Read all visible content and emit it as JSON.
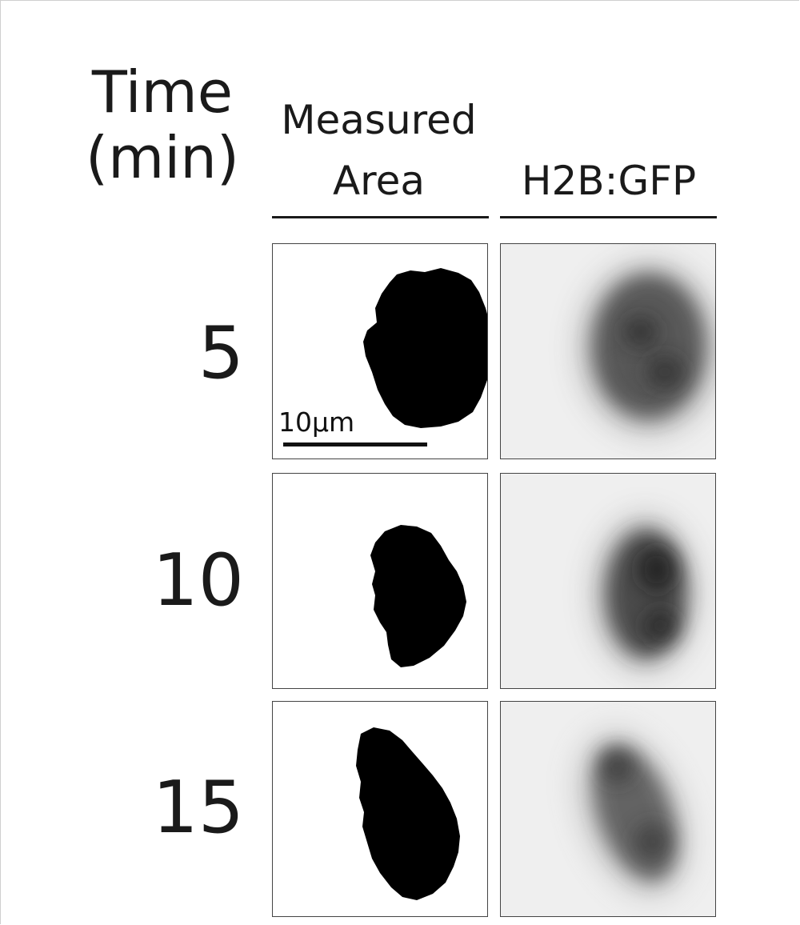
{
  "header": {
    "time_line1": "Time",
    "time_line2": "(min)",
    "col_area_line1": "Measured",
    "col_area_line2": "Area",
    "col_gfp": "H2B:GFP"
  },
  "rows": [
    {
      "time": "5"
    },
    {
      "time": "10"
    },
    {
      "time": "15"
    }
  ],
  "scale_bar": {
    "label": "10µm"
  },
  "colors": {
    "mask": "#000000",
    "gfp_dark": "#1e1e1e",
    "gfp_background": "#efefef"
  }
}
